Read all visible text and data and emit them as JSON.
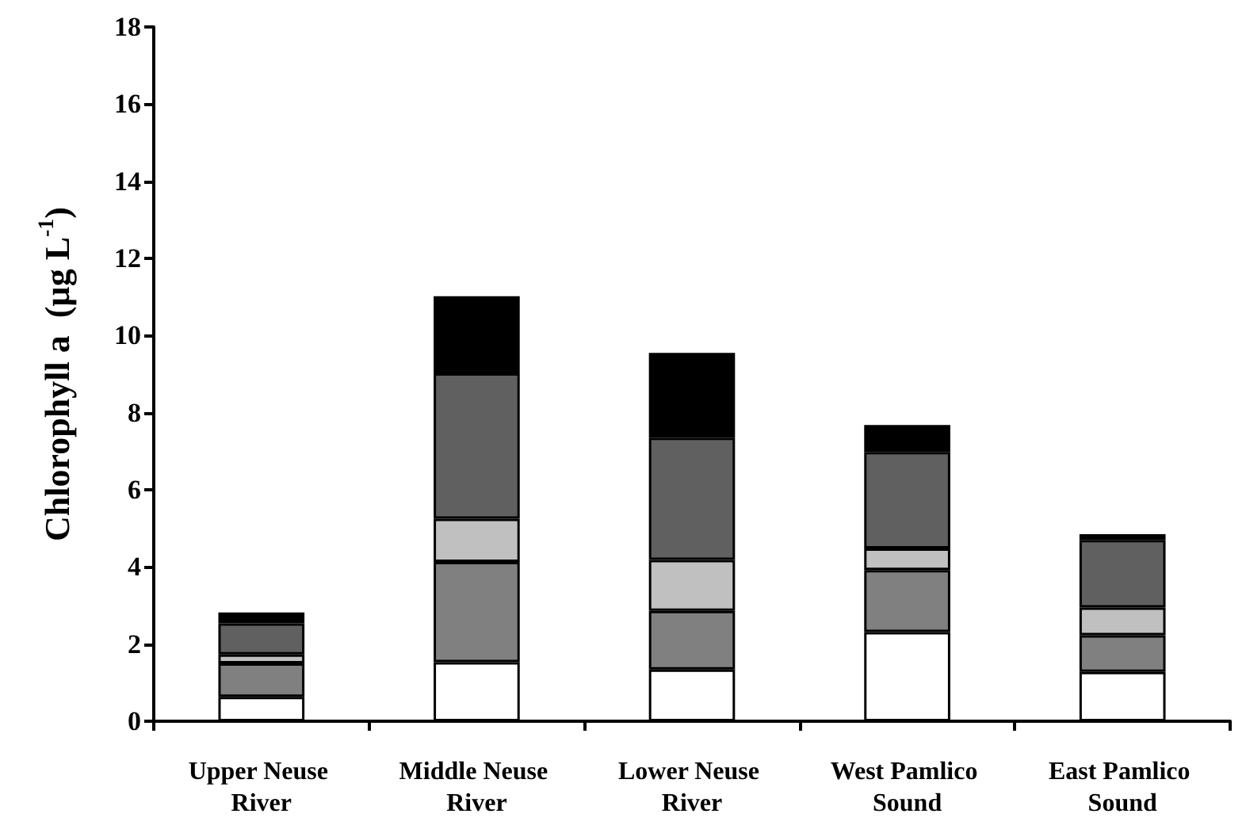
{
  "chart_data": {
    "type": "bar",
    "stacked": true,
    "ylabel": "Chlorophyll a  (µg L$^{-1}$)",
    "categories": [
      "Upper Neuse River",
      "Middle Neuse River",
      "Lower Neuse River",
      "West Pamlico Sound",
      "East Pamlico Sound"
    ],
    "series": [
      {
        "color": "#ffffff",
        "values": [
          0.63,
          1.53,
          1.34,
          2.31,
          1.28
        ]
      },
      {
        "color": "#808080",
        "values": [
          0.87,
          2.6,
          1.52,
          1.61,
          0.95
        ]
      },
      {
        "color": "#c0c0c0",
        "values": [
          0.23,
          1.12,
          1.32,
          0.56,
          0.72
        ]
      },
      {
        "color": "#606060",
        "values": [
          0.81,
          3.77,
          3.17,
          2.5,
          1.75
        ]
      },
      {
        "color": "#000000",
        "values": [
          0.28,
          2.0,
          2.2,
          0.7,
          0.15
        ]
      }
    ],
    "ylim": [
      0,
      18
    ],
    "yticks": [
      0,
      2,
      4,
      6,
      8,
      10,
      12,
      14,
      16,
      18
    ],
    "grid": false
  }
}
